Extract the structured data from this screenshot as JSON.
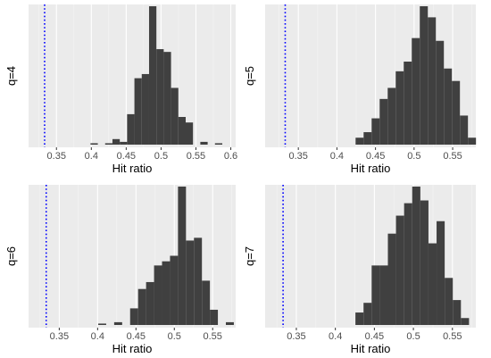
{
  "colors": {
    "panel_bg": "#ebebeb",
    "grid_major": "#ffffff",
    "grid_minor": "#f5f5f5",
    "bar_fill": "#404040",
    "ref_line": "#0000ff"
  },
  "chart_data": [
    {
      "type": "histogram",
      "facet_label": "q=4",
      "xlabel": "Hit ratio",
      "x_ticks": [
        0.35,
        0.4,
        0.45,
        0.5,
        0.55,
        0.6
      ],
      "x_tick_labels": [
        "0.35",
        "0.4",
        "0.45",
        "0.5",
        "0.55",
        "0.6"
      ],
      "xlim": [
        0.31,
        0.607
      ],
      "bin_width": 0.0105,
      "bins_start": 0.3988,
      "counts": [
        1,
        0,
        1,
        4,
        2,
        22,
        48,
        51,
        100,
        69,
        67,
        41,
        20,
        16,
        0,
        2,
        0,
        1
      ],
      "ref_line_x": 0.333,
      "y_axis": "no tick labels",
      "grid": true
    },
    {
      "type": "histogram",
      "facet_label": "q=5",
      "xlabel": "Hit ratio",
      "x_ticks": [
        0.35,
        0.4,
        0.45,
        0.5,
        0.55
      ],
      "x_tick_labels": [
        "0.35",
        "0.4",
        "0.45",
        "0.5",
        "0.55"
      ],
      "xlim": [
        0.307,
        0.58
      ],
      "bin_width": 0.0104,
      "bins_start": 0.4242,
      "counts": [
        5,
        9,
        19,
        33,
        41,
        53,
        60,
        77,
        100,
        92,
        75,
        55,
        46,
        21,
        5
      ],
      "ref_line_x": 0.333,
      "y_axis": "no tick labels",
      "grid": true
    },
    {
      "type": "histogram",
      "facet_label": "q=6",
      "xlabel": "Hit ratio",
      "x_ticks": [
        0.35,
        0.4,
        0.45,
        0.5,
        0.55
      ],
      "x_tick_labels": [
        "0.35",
        "0.4",
        "0.45",
        "0.5",
        "0.55"
      ],
      "xlim": [
        0.31,
        0.58
      ],
      "bin_width": 0.0104,
      "bins_start": 0.4008,
      "counts": [
        1,
        0,
        2,
        0,
        12,
        26,
        31,
        43,
        46,
        50,
        100,
        61,
        63,
        32,
        11,
        0,
        2
      ],
      "ref_line_x": 0.333,
      "y_axis": "no tick labels",
      "grid": true
    },
    {
      "type": "histogram",
      "facet_label": "q=7",
      "xlabel": "Hit ratio",
      "x_ticks": [
        0.35,
        0.4,
        0.45,
        0.5,
        0.55
      ],
      "x_tick_labels": [
        "0.35",
        "0.4",
        "0.45",
        "0.5",
        "0.55"
      ],
      "xlim": [
        0.31,
        0.58
      ],
      "bin_width": 0.0104,
      "bins_start": 0.4257,
      "counts": [
        9,
        16,
        43,
        43,
        66,
        79,
        88,
        100,
        90,
        59,
        75,
        34,
        18,
        5
      ],
      "ref_line_x": 0.333,
      "y_axis": "no tick labels",
      "grid": true
    }
  ]
}
